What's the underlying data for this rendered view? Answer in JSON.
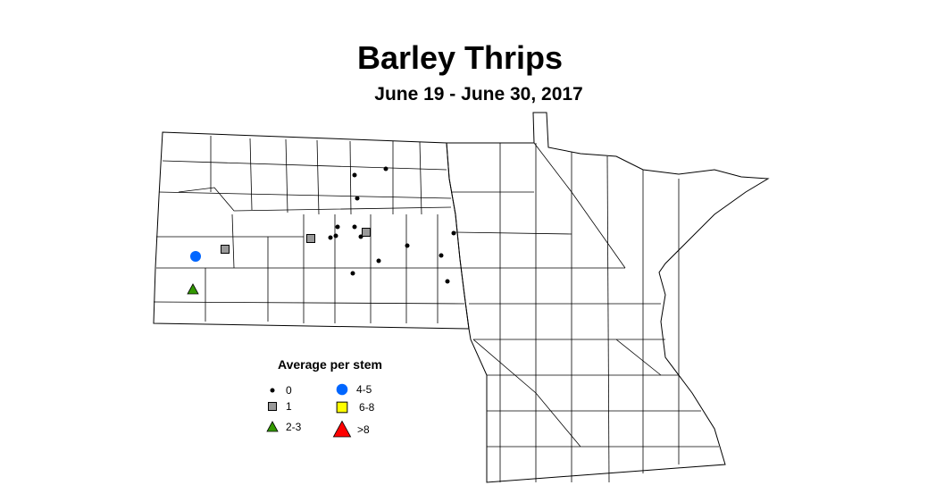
{
  "title": "Barley Thrips",
  "subtitle": "June 19 - June 30, 2017",
  "legend": {
    "title": "Average per stem",
    "items": [
      {
        "label": "0",
        "symbol": "small-dot",
        "color": "#000000"
      },
      {
        "label": "1",
        "symbol": "square",
        "color": "#999999"
      },
      {
        "label": "2-3",
        "symbol": "triangle",
        "color": "#339900"
      },
      {
        "label": "4-5",
        "symbol": "circle",
        "color": "#0066ff"
      },
      {
        "label": "6-8",
        "symbol": "square",
        "color": "#ffff00"
      },
      {
        "label": ">8",
        "symbol": "triangle",
        "color": "#ff0000"
      }
    ]
  },
  "observations": [
    "0",
    "0",
    "0",
    "0",
    "0",
    "0",
    "0",
    "0",
    "0",
    "0",
    "0",
    "0",
    "0",
    "0",
    "1",
    "1",
    "1",
    "4-5",
    "2-3"
  ]
}
